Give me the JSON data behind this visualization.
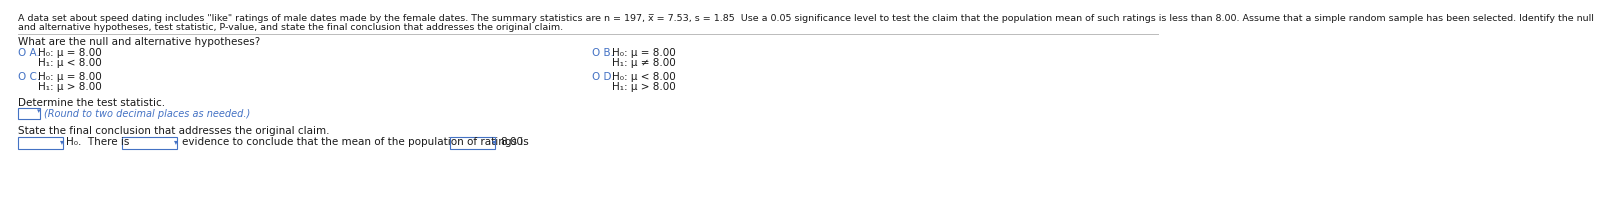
{
  "background_color": "#ffffff",
  "header_line1": "A data set about speed dating includes \"like\" ratings of male dates made by the female dates. The summary statistics are n = 197, x̅ = 7.53, s = 1.85  Use a 0.05 significance level to test the claim that the population mean of such ratings is less than 8.00. Assume that a simple random sample has been selected. Identify the null",
  "header_line2": "and alternative hypotheses, test statistic, P-value, and state the final conclusion that addresses the original claim.",
  "question_text": "What are the null and alternative hypotheses?",
  "opt_A_label": "O A.",
  "opt_A_h0": "H₀: μ = 8.00",
  "opt_A_h1": "H₁: μ < 8.00",
  "opt_B_label": "O B.",
  "opt_B_h0": "H₀: μ = 8.00",
  "opt_B_h1": "H₁: μ ≠ 8.00",
  "opt_C_label": "O C.",
  "opt_C_h0": "H₀: μ = 8.00",
  "opt_C_h1": "H₁: μ > 8.00",
  "opt_D_label": "O D.",
  "opt_D_h0": "H₀: μ < 8.00",
  "opt_D_h1": "H₁: μ > 8.00",
  "determine_label": "Determine the test statistic.",
  "round_note": "(Round to two decimal places as needed.)",
  "conclusion_label": "State the final conclusion that addresses the original claim.",
  "conclusion_prefix": "H₀.  There is",
  "conclusion_mid": "evidence to conclude that the mean of the population of ratings is",
  "conclusion_end": "8.00.",
  "text_color": "#1a1a1a",
  "option_color": "#4472C4",
  "box_color": "#4472C4",
  "divider_color": "#bbbbbb",
  "header_fontsize": 6.8,
  "body_fontsize": 7.5,
  "option_fontsize": 7.5
}
